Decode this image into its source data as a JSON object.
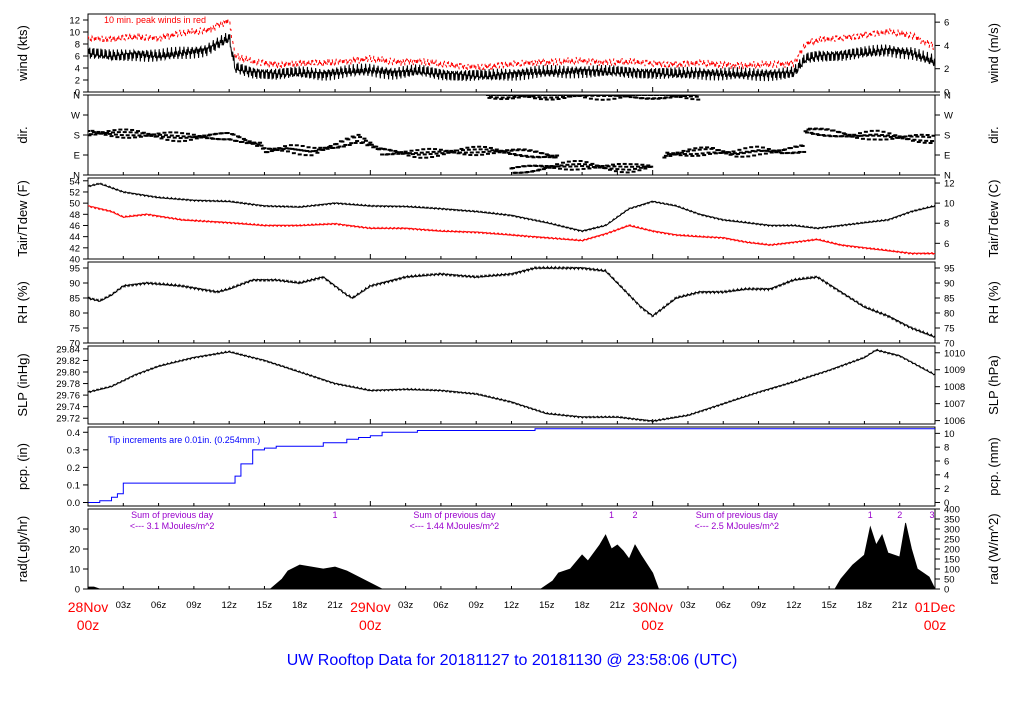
{
  "title": "UW Rooftop Data for 20181127  to  20181130 @ 23:58:06  (UTC)",
  "colors": {
    "black": "#000000",
    "red": "#ff0000",
    "blue": "#0000ff",
    "purple": "#9900cc",
    "bg": "#ffffff"
  },
  "time_axis": {
    "hours_total": 72,
    "tick_labels": [
      "03z",
      "06z",
      "09z",
      "12z",
      "15z",
      "18z",
      "21z",
      "03z",
      "06z",
      "09z",
      "12z",
      "15z",
      "18z",
      "21z",
      "03z",
      "06z",
      "09z",
      "12z",
      "15z",
      "18z",
      "21z"
    ],
    "tick_hours": [
      3,
      6,
      9,
      12,
      15,
      18,
      21,
      27,
      30,
      33,
      36,
      39,
      42,
      45,
      51,
      54,
      57,
      60,
      63,
      66,
      69
    ],
    "day_labels": [
      {
        "day": "28Nov",
        "hour_label": "00z",
        "at_hour": 0
      },
      {
        "day": "29Nov",
        "hour_label": "00z",
        "at_hour": 24
      },
      {
        "day": "30Nov",
        "hour_label": "00z",
        "at_hour": 48
      },
      {
        "day": "01Dec",
        "hour_label": "00z",
        "at_hour": 72
      }
    ]
  },
  "chart_data": [
    {
      "id": "wind",
      "type": "line",
      "ylabel_left": "wind (kts)",
      "ylabel_right": "wind (m/s)",
      "yticks_left": [
        "0",
        "2",
        "4",
        "6",
        "8",
        "10",
        "12"
      ],
      "ylim_left": [
        0,
        13
      ],
      "yticks_right": [
        "0",
        "2",
        "4",
        "6"
      ],
      "ylim_right": [
        0,
        6.7
      ],
      "annotation": "10 min. peak winds in red",
      "series": [
        {
          "role": "mean",
          "color": "#000000",
          "x": [
            0,
            2,
            4,
            6,
            8,
            10,
            12,
            12.5,
            14,
            16,
            18,
            20,
            22,
            24,
            26,
            28,
            30,
            32,
            34,
            36,
            38,
            40,
            42,
            44,
            46,
            48,
            50,
            52,
            54,
            56,
            58,
            60,
            61,
            62,
            64,
            66,
            68,
            70,
            72
          ],
          "y": [
            6.5,
            6.0,
            6.3,
            6.0,
            6.5,
            7.0,
            9.0,
            4.0,
            3.3,
            3.0,
            3.2,
            3.0,
            3.4,
            3.6,
            3.2,
            3.5,
            3.0,
            2.8,
            2.7,
            3.0,
            3.3,
            3.3,
            3.5,
            3.4,
            3.3,
            3.2,
            3.0,
            3.2,
            3.0,
            2.9,
            3.0,
            3.2,
            5.5,
            6.0,
            6.2,
            6.5,
            7.0,
            6.5,
            5.0
          ]
        },
        {
          "role": "peak",
          "color": "#ff0000",
          "x": [
            0,
            2,
            4,
            6,
            8,
            10,
            12,
            12.5,
            14,
            16,
            18,
            20,
            22,
            24,
            26,
            28,
            30,
            32,
            34,
            36,
            38,
            40,
            42,
            44,
            46,
            48,
            50,
            52,
            54,
            56,
            58,
            60,
            61,
            62,
            64,
            66,
            68,
            70,
            72
          ],
          "y": [
            9.0,
            8.8,
            9.2,
            9.0,
            9.8,
            10.2,
            12.0,
            6.0,
            5.0,
            4.6,
            4.8,
            4.8,
            5.2,
            5.5,
            5.0,
            5.2,
            4.6,
            4.3,
            4.2,
            4.6,
            5.0,
            5.0,
            5.2,
            5.0,
            5.0,
            4.8,
            4.6,
            4.8,
            4.6,
            4.4,
            4.6,
            4.8,
            8.0,
            8.6,
            9.0,
            9.5,
            10.0,
            9.5,
            7.5
          ]
        }
      ]
    },
    {
      "id": "dir",
      "type": "scatter",
      "ylabel_left": "dir.",
      "ylabel_right": "dir.",
      "yticks_left": [
        "N",
        "E",
        "S",
        "W",
        "N"
      ],
      "ylim_left": [
        0,
        360
      ],
      "yticks_right": [
        "N",
        "E",
        "S",
        "W",
        "N"
      ],
      "series": [
        {
          "color": "#000000",
          "segments": [
            {
              "x": [
                0,
                4,
                8,
                12,
                13.5,
                15
              ],
              "y": [
                190,
                185,
                170,
                175,
                150,
                130
              ]
            },
            {
              "x": [
                15,
                17,
                19,
                21,
                23,
                25
              ],
              "y": [
                110,
                120,
                105,
                130,
                165,
                110
              ]
            },
            {
              "x": [
                25,
                28,
                31,
                34,
                37,
                40
              ],
              "y": [
                105,
                95,
                105,
                110,
                100,
                80
              ]
            },
            {
              "x": [
                34,
                36,
                38,
                40,
                42,
                44,
                46,
                48,
                50,
                52
              ],
              "y": [
                360,
                358,
                356,
                358,
                360,
                358,
                356,
                358,
                356,
                358
              ]
            },
            {
              "x": [
                36,
                38,
                40,
                42,
                44,
                46,
                48
              ],
              "y": [
                20,
                30,
                40,
                45,
                35,
                30,
                40
              ]
            },
            {
              "x": [
                49,
                51,
                53,
                55,
                57,
                59,
                61
              ],
              "y": [
                90,
                100,
                110,
                95,
                110,
                105,
                120
              ]
            },
            {
              "x": [
                61,
                63,
                65,
                67,
                69,
                72
              ],
              "y": [
                200,
                190,
                175,
                180,
                170,
                160
              ]
            }
          ]
        }
      ]
    },
    {
      "id": "temp",
      "type": "line",
      "ylabel_left": "Tair/Tdew (F)",
      "ylabel_right": "Tair/Tdew (C)",
      "yticks_left": [
        "40",
        "42",
        "44",
        "46",
        "48",
        "50",
        "52",
        "54"
      ],
      "ylim_left": [
        40,
        54.5
      ],
      "yticks_right": [
        "6",
        "8",
        "10",
        "12"
      ],
      "ylim_right": [
        4.44,
        12.5
      ],
      "series": [
        {
          "role": "air",
          "color": "#000000",
          "x": [
            0,
            1,
            3,
            6,
            9,
            12,
            15,
            18,
            21,
            24,
            27,
            30,
            33,
            36,
            39,
            42,
            44,
            46,
            48,
            50,
            52,
            54,
            56,
            58,
            60,
            62,
            64,
            66,
            68,
            70,
            72
          ],
          "y": [
            53.0,
            53.5,
            52.0,
            51.0,
            50.5,
            50.3,
            49.5,
            49.3,
            50.0,
            49.5,
            49.4,
            49.0,
            48.5,
            47.8,
            46.5,
            45.0,
            46.0,
            49.0,
            50.3,
            49.5,
            48.0,
            47.0,
            46.5,
            46.0,
            46.0,
            45.5,
            46.0,
            46.5,
            47.0,
            48.5,
            49.5
          ]
        },
        {
          "role": "dew",
          "color": "#ff0000",
          "x": [
            0,
            2,
            3,
            5,
            8,
            12,
            15,
            18,
            21,
            24,
            27,
            30,
            33,
            36,
            39,
            42,
            44,
            46,
            48,
            50,
            52,
            54,
            56,
            58,
            60,
            62,
            64,
            66,
            68,
            70,
            72
          ],
          "y": [
            49.5,
            48.5,
            47.5,
            48.0,
            47.0,
            46.5,
            46.0,
            46.0,
            46.3,
            45.5,
            45.5,
            45.0,
            44.8,
            44.3,
            43.8,
            43.3,
            44.5,
            46.0,
            45.0,
            44.3,
            44.0,
            43.8,
            43.0,
            42.5,
            43.0,
            43.5,
            42.5,
            42.0,
            41.5,
            41.0,
            41.0
          ]
        }
      ]
    },
    {
      "id": "rh",
      "type": "line",
      "ylabel_left": "RH (%)",
      "ylabel_right": "RH (%)",
      "yticks_left": [
        "70",
        "75",
        "80",
        "85",
        "90",
        "95"
      ],
      "ylim_left": [
        70,
        97
      ],
      "yticks_right": [
        "70",
        "75",
        "80",
        "85",
        "90",
        "95"
      ],
      "series": [
        {
          "color": "#000000",
          "x": [
            0,
            1,
            2,
            3,
            5,
            8,
            11,
            12,
            14,
            16,
            18,
            20,
            22,
            22.5,
            24,
            27,
            30,
            33,
            36,
            38,
            40,
            41,
            42,
            44,
            46,
            47,
            48,
            50,
            52,
            54,
            56,
            58,
            60,
            62,
            64,
            66,
            68,
            70,
            72
          ],
          "y": [
            85,
            84,
            86,
            89,
            90,
            89,
            87,
            88,
            91,
            91,
            90,
            92,
            86,
            85,
            89,
            92,
            93,
            92,
            93,
            95,
            95,
            95,
            95,
            94,
            86,
            82,
            79,
            85,
            87,
            87,
            88,
            88,
            91,
            92,
            87,
            82,
            79,
            75,
            72
          ]
        }
      ]
    },
    {
      "id": "slp",
      "type": "line",
      "ylabel_left": "SLP (inHg)",
      "ylabel_right": "SLP (hPa)",
      "yticks_left": [
        "29.72",
        "29.74",
        "29.76",
        "29.78",
        "29.80",
        "29.82",
        "29.84"
      ],
      "ylim_left": [
        29.71,
        29.845
      ],
      "yticks_right": [
        "1006",
        "1007",
        "1008",
        "1009",
        "1010"
      ],
      "ylim_right": [
        1005.8,
        1010.4
      ],
      "series": [
        {
          "color": "#000000",
          "x": [
            0,
            2,
            4,
            6,
            9,
            12,
            15,
            18,
            21,
            24,
            27,
            30,
            33,
            36,
            39,
            42,
            45,
            48,
            51,
            54,
            57,
            60,
            63,
            66,
            67,
            69,
            72
          ],
          "y": [
            29.765,
            29.775,
            29.795,
            29.81,
            29.825,
            29.835,
            29.82,
            29.8,
            29.78,
            29.768,
            29.77,
            29.768,
            29.762,
            29.748,
            29.728,
            29.722,
            29.722,
            29.715,
            29.725,
            29.745,
            29.765,
            29.783,
            29.803,
            29.825,
            29.838,
            29.828,
            29.795
          ]
        }
      ]
    },
    {
      "id": "pcp",
      "type": "line",
      "ylabel_left": "pcp. (in)",
      "ylabel_right": "pcp. (mm)",
      "yticks_left": [
        "0.0",
        "0.1",
        "0.2",
        "0.3",
        "0.4"
      ],
      "ylim_left": [
        -0.02,
        0.43
      ],
      "yticks_right": [
        "0",
        "2",
        "4",
        "6",
        "8",
        "10"
      ],
      "ylim_right": [
        -0.51,
        10.92
      ],
      "annotation": "Tip increments are 0.01in. (0.254mm.)",
      "series": [
        {
          "color": "#0000ff",
          "x": [
            0,
            1,
            2,
            2.5,
            3,
            12,
            12.5,
            13,
            14,
            15,
            16,
            18,
            20,
            22,
            23,
            24,
            25,
            26,
            28,
            30,
            32,
            34,
            36,
            38,
            40,
            42,
            44,
            48,
            54,
            60,
            66,
            72
          ],
          "y": [
            0,
            0.01,
            0.03,
            0.05,
            0.11,
            0.11,
            0.15,
            0.22,
            0.3,
            0.31,
            0.32,
            0.32,
            0.34,
            0.36,
            0.37,
            0.38,
            0.4,
            0.4,
            0.41,
            0.41,
            0.41,
            0.41,
            0.41,
            0.42,
            0.42,
            0.42,
            0.42,
            0.42,
            0.42,
            0.42,
            0.42,
            0.42
          ]
        }
      ]
    },
    {
      "id": "rad",
      "type": "area",
      "ylabel_left": "rad(Lgly/hr)",
      "ylabel_right": "rad (W/m^2)",
      "yticks_left": [
        "0",
        "10",
        "20",
        "30"
      ],
      "ylim_left": [
        0,
        40
      ],
      "yticks_right": [
        "0",
        "50",
        "100",
        "150",
        "200",
        "250",
        "300",
        "350",
        "400"
      ],
      "ylim_right": [
        0,
        400
      ],
      "annotations": [
        {
          "line1": "Sum of previous day",
          "line2": "<--- 3.1 MJoules/m^2",
          "at_hour": 8
        },
        {
          "line1": "Sum of previous day",
          "line2": "<--- 1.44 MJoules/m^2",
          "at_hour": 32
        },
        {
          "line1": "Sum of previous day",
          "line2": "<--- 2.5 MJoules/m^2",
          "at_hour": 56
        }
      ],
      "peak_markers": [
        {
          "label": "1",
          "at_hour": 21
        },
        {
          "label": "1",
          "at_hour": 44.5
        },
        {
          "label": "2",
          "at_hour": 46.5
        },
        {
          "label": "1",
          "at_hour": 66.5
        },
        {
          "label": "2",
          "at_hour": 69
        },
        {
          "label": "3",
          "at_hour": 72
        }
      ],
      "series": [
        {
          "color": "#000000",
          "x": [
            0,
            0.5,
            1,
            15.5,
            16.5,
            17,
            18,
            19,
            20,
            21,
            22,
            23,
            24,
            25,
            38.5,
            39.5,
            40,
            41,
            42,
            42.5,
            43.5,
            44,
            44.5,
            45,
            45.5,
            46,
            46.5,
            47,
            48,
            48.5,
            63.5,
            64,
            65,
            66,
            66.5,
            67,
            67.5,
            68,
            69,
            69.5,
            70,
            70.5,
            71,
            71.5,
            72
          ],
          "y": [
            1,
            1,
            0,
            0,
            5,
            9,
            12,
            11,
            10,
            11,
            9,
            6,
            3,
            0,
            0,
            4,
            8,
            10,
            17,
            14,
            22,
            27,
            20,
            22,
            19,
            15,
            22,
            17,
            8,
            0,
            0,
            5,
            12,
            17,
            31,
            22,
            27,
            18,
            16,
            33,
            20,
            10,
            8,
            6,
            0
          ]
        }
      ]
    }
  ]
}
